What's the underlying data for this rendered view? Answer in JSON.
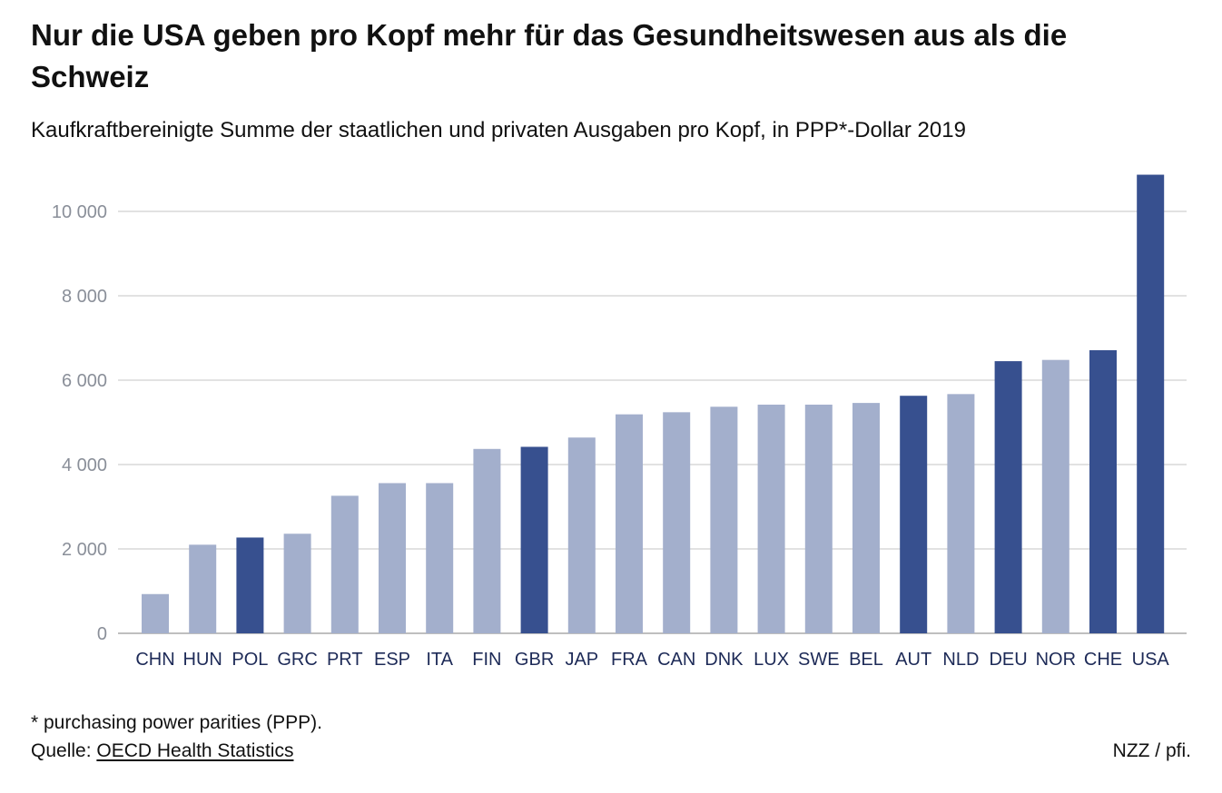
{
  "title": "Nur die USA geben pro Kopf mehr für das Gesundheitswesen aus als die Schweiz",
  "subtitle": "Kaufkraftbereinigte Summe der staatlichen und privaten Ausgaben pro Kopf, in PPP*-Dollar 2019",
  "footnote": "* purchasing power parities (PPP).",
  "source": {
    "label": "Quelle: ",
    "link_text": "OECD Health Statistics"
  },
  "credit": "NZZ / pfi.",
  "colors": {
    "highlight": "#37508f",
    "default": "#a3afcc",
    "grid": "#d0d0d0",
    "axis": "#999999"
  },
  "chart_data": {
    "type": "bar",
    "title": "Nur die USA geben pro Kopf mehr für das Gesundheitswesen aus als die Schweiz",
    "subtitle": "Kaufkraftbereinigte Summe der staatlichen und privaten Ausgaben pro Kopf, in PPP*-Dollar 2019",
    "xlabel": "",
    "ylabel": "",
    "ylim": [
      0,
      11000
    ],
    "yticks": [
      0,
      2000,
      4000,
      6000,
      8000,
      10000
    ],
    "ytick_labels": [
      "0",
      "2 000",
      "4 000",
      "6 000",
      "8 000",
      "10 000"
    ],
    "grid": true,
    "legend": "none",
    "categories": [
      "CHN",
      "HUN",
      "POL",
      "GRC",
      "PRT",
      "ESP",
      "ITA",
      "FIN",
      "GBR",
      "JAP",
      "FRA",
      "CAN",
      "DNK",
      "LUX",
      "SWE",
      "BEL",
      "AUT",
      "NLD",
      "DEU",
      "NOR",
      "CHE",
      "USA"
    ],
    "values": [
      930,
      2100,
      2270,
      2360,
      3260,
      3560,
      3560,
      4370,
      4420,
      4640,
      5190,
      5240,
      5370,
      5420,
      5420,
      5460,
      5630,
      5670,
      6450,
      6480,
      6710,
      10870
    ],
    "highlighted": [
      "POL",
      "GBR",
      "AUT",
      "DEU",
      "CHE",
      "USA"
    ]
  }
}
